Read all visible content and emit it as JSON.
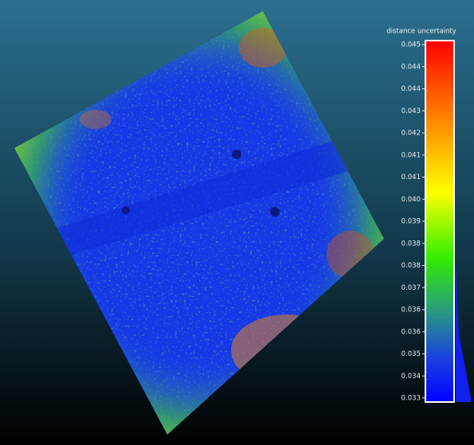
{
  "color_scale": {
    "title": "distance uncertainty",
    "labels": [
      "0.045",
      "0.044",
      "0.044",
      "0.043",
      "0.042",
      "0.041",
      "0.041",
      "0.040",
      "0.039",
      "0.038",
      "0.038",
      "0.037",
      "0.036",
      "0.036",
      "0.035",
      "0.034",
      "0.033"
    ]
  }
}
